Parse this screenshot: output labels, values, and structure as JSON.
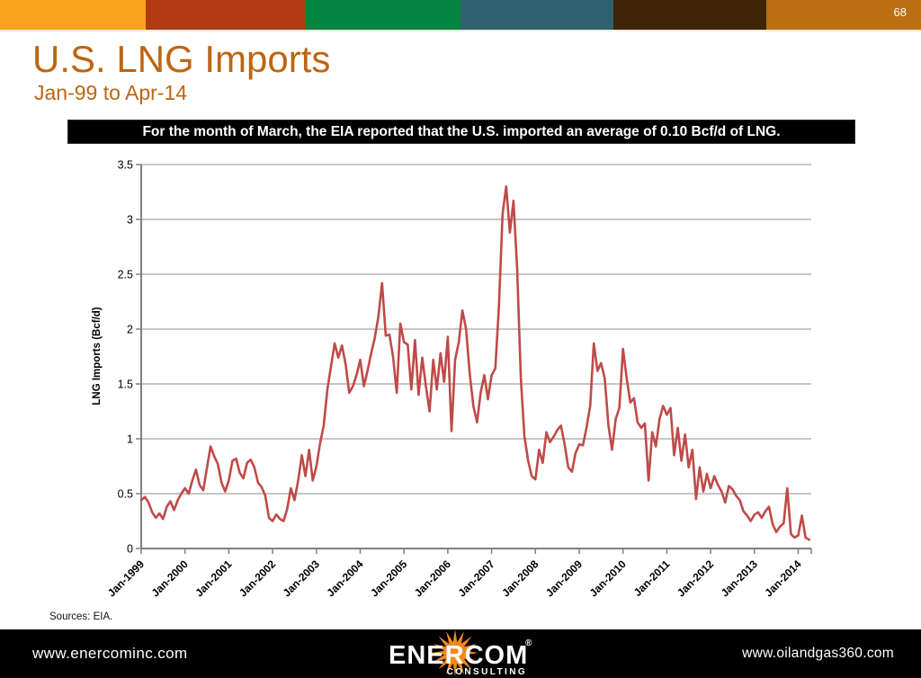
{
  "page_number": "68",
  "top_bar": {
    "segment_colors": [
      "#F9A21B",
      "#B23A12",
      "#038540",
      "#2F616E",
      "#3F2508",
      "#B96F12"
    ]
  },
  "header": {
    "title": "U.S. LNG Imports",
    "subtitle": "Jan-99 to Apr-14",
    "accent_color": "#BD6512"
  },
  "callout": {
    "text": "For the month of March, the EIA reported that the U.S. imported an average of 0.10 Bcf/d of LNG."
  },
  "chart_data": {
    "type": "line",
    "title": "",
    "xlabel": "",
    "ylabel": "LNG Imports (Bcf/d)",
    "ylim": [
      0,
      3.5
    ],
    "ytick_step": 0.5,
    "ytick_labels": [
      "0",
      "0.5",
      "1",
      "1.5",
      "2",
      "2.5",
      "3",
      "3.5"
    ],
    "xtick_labels": [
      "Jan-1999",
      "Jan-2000",
      "Jan-2001",
      "Jan-2002",
      "Jan-2003",
      "Jan-2004",
      "Jan-2005",
      "Jan-2006",
      "Jan-2007",
      "Jan-2008",
      "Jan-2009",
      "Jan-2010",
      "Jan-2011",
      "Jan-2012",
      "Jan-2013",
      "Jan-2014"
    ],
    "months_per_xtick": 12,
    "grid": true,
    "legend": false,
    "line_color": "#BE4B48",
    "axis_color": "#808080",
    "grid_color": "#A3A3A3",
    "series": [
      {
        "name": "U.S. LNG Imports (Bcf/d)",
        "start": "Jan-1999",
        "end": "Apr-2014",
        "values": [
          0.44,
          0.47,
          0.42,
          0.33,
          0.28,
          0.32,
          0.27,
          0.38,
          0.43,
          0.35,
          0.44,
          0.5,
          0.55,
          0.5,
          0.62,
          0.72,
          0.58,
          0.53,
          0.73,
          0.93,
          0.84,
          0.77,
          0.6,
          0.52,
          0.62,
          0.8,
          0.82,
          0.69,
          0.64,
          0.78,
          0.81,
          0.74,
          0.6,
          0.56,
          0.48,
          0.28,
          0.25,
          0.31,
          0.27,
          0.25,
          0.36,
          0.55,
          0.44,
          0.62,
          0.85,
          0.66,
          0.9,
          0.62,
          0.75,
          0.96,
          1.12,
          1.45,
          1.66,
          1.87,
          1.74,
          1.85,
          1.68,
          1.42,
          1.48,
          1.58,
          1.72,
          1.48,
          1.62,
          1.78,
          1.92,
          2.12,
          2.42,
          1.94,
          1.95,
          1.75,
          1.42,
          2.05,
          1.88,
          1.86,
          1.45,
          1.9,
          1.4,
          1.74,
          1.48,
          1.25,
          1.72,
          1.45,
          1.78,
          1.52,
          1.93,
          1.07,
          1.72,
          1.88,
          2.17,
          2.0,
          1.6,
          1.3,
          1.15,
          1.42,
          1.58,
          1.36,
          1.58,
          1.64,
          2.2,
          3.05,
          3.3,
          2.88,
          3.17,
          2.55,
          1.55,
          1.02,
          0.8,
          0.66,
          0.63,
          0.9,
          0.78,
          1.06,
          0.97,
          1.02,
          1.08,
          1.12,
          0.95,
          0.74,
          0.7,
          0.87,
          0.95,
          0.94,
          1.1,
          1.3,
          1.87,
          1.62,
          1.69,
          1.55,
          1.12,
          0.9,
          1.18,
          1.28,
          1.82,
          1.55,
          1.33,
          1.37,
          1.15,
          1.1,
          1.14,
          0.62,
          1.06,
          0.93,
          1.18,
          1.3,
          1.22,
          1.28,
          0.85,
          1.1,
          0.8,
          1.04,
          0.74,
          0.9,
          0.45,
          0.74,
          0.52,
          0.68,
          0.55,
          0.66,
          0.58,
          0.52,
          0.42,
          0.57,
          0.54,
          0.48,
          0.44,
          0.34,
          0.3,
          0.25,
          0.31,
          0.33,
          0.28,
          0.34,
          0.38,
          0.22,
          0.15,
          0.2,
          0.23,
          0.55,
          0.13,
          0.1,
          0.12,
          0.3,
          0.1,
          0.08
        ]
      }
    ]
  },
  "sources": "Sources: EIA.",
  "footer": {
    "left_url": "www.enercominc.com",
    "right_url": "www.oilandgas360.com",
    "logo": {
      "wordmark": "ENERCOM",
      "registered": "®",
      "tagline": "CONSULTING",
      "burst_color": "#F08A1D"
    }
  }
}
